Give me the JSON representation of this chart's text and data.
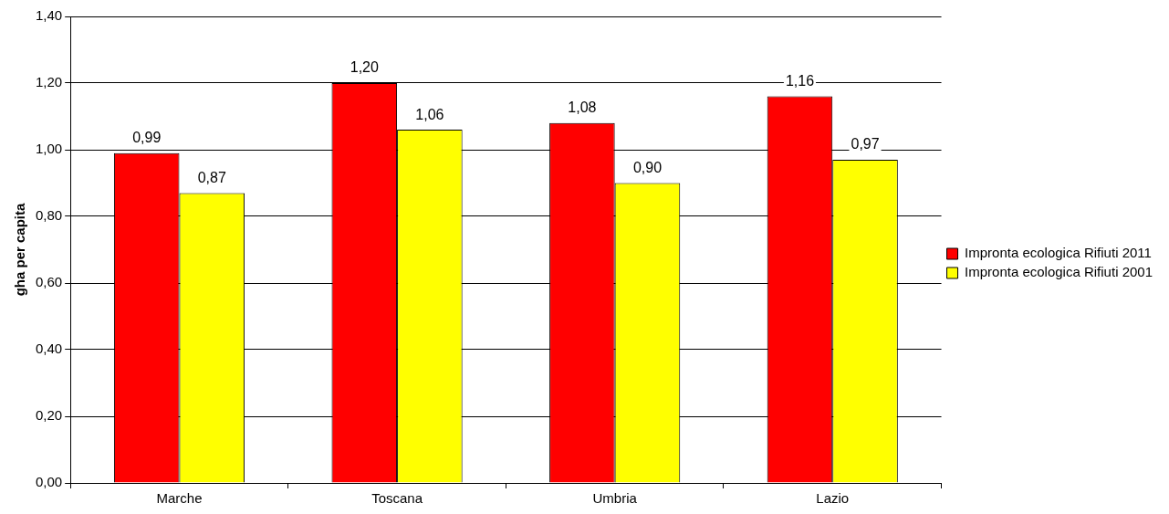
{
  "chart_data": {
    "type": "bar",
    "ylabel": "gha per capita",
    "categories": [
      "Marche",
      "Toscana",
      "Umbria",
      "Lazio"
    ],
    "series": [
      {
        "name": "Impronta ecologica Rifiuti 2011",
        "color": "#ff0000",
        "values": [
          0.99,
          1.2,
          1.08,
          1.16
        ],
        "value_labels": [
          "0,99",
          "1,20",
          "1,08",
          "1,16"
        ]
      },
      {
        "name": "Impronta ecologica Rifiuti 2001",
        "color": "#ffff00",
        "values": [
          0.87,
          1.06,
          0.9,
          0.97
        ],
        "value_labels": [
          "0,87",
          "1,06",
          "0,90",
          "0,97"
        ]
      }
    ],
    "ylim": [
      0,
      1.4
    ],
    "yticks": [
      {
        "value": 0,
        "label": "0,00"
      },
      {
        "value": 0.2,
        "label": "0,20"
      },
      {
        "value": 0.4,
        "label": "0,40"
      },
      {
        "value": 0.6,
        "label": "0,60"
      },
      {
        "value": 0.8,
        "label": "0,80"
      },
      {
        "value": 1.0,
        "label": "1,00"
      },
      {
        "value": 1.2,
        "label": "1,20"
      },
      {
        "value": 1.4,
        "label": "1,40"
      }
    ],
    "grid": "y",
    "legend": "right"
  }
}
